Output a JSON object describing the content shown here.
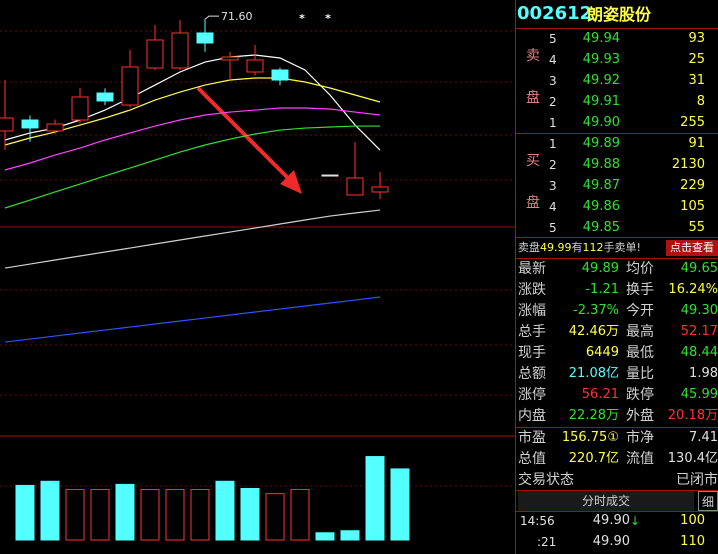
{
  "chart": {
    "type": "candlestick",
    "ylim": [
      20,
      74
    ],
    "up_color": "#ff3232",
    "down_color": "#54ffff",
    "flat_color": "#e0e0e0",
    "candles": [
      {
        "o": 57.55,
        "h": 63.95,
        "l": 55.16,
        "c": 59.18
      },
      {
        "o": 58.93,
        "h": 59.5,
        "l": 56.2,
        "c": 57.93
      },
      {
        "o": 57.55,
        "h": 59.0,
        "l": 57.2,
        "c": 58.43
      },
      {
        "o": 58.93,
        "h": 62.95,
        "l": 58.5,
        "c": 61.82
      },
      {
        "o": 62.32,
        "h": 62.9,
        "l": 60.8,
        "c": 61.32
      },
      {
        "o": 60.81,
        "h": 67.72,
        "l": 60.5,
        "c": 65.59
      },
      {
        "o": 65.46,
        "h": 70.86,
        "l": 65.2,
        "c": 68.98
      },
      {
        "o": 65.46,
        "h": 71.49,
        "l": 65.2,
        "c": 69.86
      },
      {
        "o": 69.86,
        "h": 71.6,
        "l": 67.5,
        "c": 68.6
      },
      {
        "o": 66.47,
        "h": 67.47,
        "l": 63.95,
        "c": 66.84
      },
      {
        "o": 64.96,
        "h": 68.35,
        "l": 64.5,
        "c": 66.47
      },
      {
        "o": 65.21,
        "h": 65.5,
        "l": 63.3,
        "c": 63.95
      },
      null,
      {
        "o": 52.02,
        "h": 52.02,
        "l": 52.02,
        "c": 52.02
      },
      {
        "o": 49.51,
        "h": 56.17,
        "l": 49.5,
        "c": 51.65
      },
      {
        "o": 49.89,
        "h": 52.4,
        "l": 49.01,
        "c": 50.52
      }
    ],
    "peak_label": "71.60",
    "markers": [
      "*",
      "*"
    ],
    "moving_averages": [
      {
        "color": "#ffffff",
        "values": [
          56.42,
          57.3,
          57.92,
          58.93,
          60.18,
          61.69,
          63.32,
          64.96,
          66.21,
          66.84,
          67.09,
          66.72,
          65.21,
          62.07,
          58.3,
          55.16
        ]
      },
      {
        "color": "#ffff40",
        "values": [
          55.79,
          56.67,
          57.42,
          58.3,
          59.18,
          60.18,
          61.44,
          62.44,
          63.32,
          63.95,
          64.2,
          64.2,
          63.7,
          62.95,
          62.07,
          61.19
        ]
      },
      {
        "color": "#ff40ff",
        "values": [
          52.65,
          53.53,
          54.53,
          55.41,
          56.42,
          57.3,
          58.17,
          58.93,
          59.56,
          59.93,
          60.18,
          60.44,
          60.44,
          60.31,
          59.93,
          59.56
        ]
      },
      {
        "color": "#30e030",
        "values": [
          47.88,
          48.88,
          49.89,
          50.89,
          51.9,
          52.9,
          53.9,
          54.91,
          55.79,
          56.54,
          57.17,
          57.67,
          57.92,
          58.05,
          58.17,
          58.17
        ]
      },
      {
        "color": "#d0d0d0",
        "values": [
          40.34,
          40.84,
          41.35,
          41.85,
          42.35,
          42.85,
          43.36,
          43.86,
          44.36,
          44.86,
          45.36,
          45.87,
          46.37,
          46.87,
          47.25,
          47.62
        ]
      },
      {
        "color": "#3050ff",
        "values": [
          31.04,
          31.42,
          31.8,
          32.18,
          32.55,
          32.93,
          33.31,
          33.69,
          34.06,
          34.44,
          34.82,
          35.19,
          35.57,
          35.95,
          36.32,
          36.7
        ]
      }
    ],
    "volume": {
      "ylim": [
        0,
        100
      ],
      "values": [
        53,
        57,
        49,
        49,
        54,
        49,
        49,
        49,
        57,
        50,
        45,
        49,
        7,
        9,
        81,
        69
      ],
      "up": [
        false,
        false,
        true,
        true,
        false,
        true,
        true,
        true,
        false,
        false,
        true,
        true,
        false,
        false,
        false,
        false
      ]
    }
  },
  "quote": {
    "code": "002612",
    "name": "朗姿股份",
    "sell_label": [
      "卖",
      "盘"
    ],
    "buy_label": [
      "买",
      "盘"
    ],
    "sell": [
      [
        "5",
        "49.94",
        "93"
      ],
      [
        "4",
        "49.93",
        "25"
      ],
      [
        "3",
        "49.92",
        "31"
      ],
      [
        "2",
        "49.91",
        "8"
      ],
      [
        "1",
        "49.90",
        "255"
      ]
    ],
    "buy": [
      [
        "1",
        "49.89",
        "91"
      ],
      [
        "2",
        "49.88",
        "2130"
      ],
      [
        "3",
        "49.87",
        "229"
      ],
      [
        "4",
        "49.86",
        "105"
      ],
      [
        "5",
        "49.85",
        "55"
      ]
    ],
    "notice": {
      "prefix": "卖盘",
      "price": "49.99",
      "mid": "有",
      "qty": "112",
      "suffix": "手卖单!"
    },
    "button": "点击查看",
    "stats": [
      [
        {
          "label": "最新",
          "value": "49.89",
          "color": "#30e030"
        },
        {
          "label": "均价",
          "value": "49.65",
          "color": "#30e030"
        }
      ],
      [
        {
          "label": "涨跌",
          "value": "-1.21",
          "color": "#30e030"
        },
        {
          "label": "换手",
          "value": "16.24%",
          "color": "#ffff40"
        }
      ],
      [
        {
          "label": "涨幅",
          "value": "-2.37%",
          "color": "#30e030"
        },
        {
          "label": "今开",
          "value": "49.30",
          "color": "#30e030"
        }
      ],
      [
        {
          "label": "总手",
          "value": "42.46万",
          "color": "#ffff40"
        },
        {
          "label": "最高",
          "value": "52.17",
          "color": "#ff3232"
        }
      ],
      [
        {
          "label": "现手",
          "value": "6449",
          "color": "#ffff40"
        },
        {
          "label": "最低",
          "value": "48.44",
          "color": "#30e030"
        }
      ],
      [
        {
          "label": "总额",
          "value": "21.08亿",
          "color": "#54ffff"
        },
        {
          "label": "量比",
          "value": "1.98",
          "color": "#e0e0e0"
        }
      ],
      [
        {
          "label": "涨停",
          "value": "56.21",
          "color": "#ff3232"
        },
        {
          "label": "跌停",
          "value": "45.99",
          "color": "#30e030"
        }
      ],
      [
        {
          "label": "内盘",
          "value": "22.28万",
          "color": "#30e030"
        },
        {
          "label": "外盘",
          "value": "20.18万",
          "color": "#ff3232"
        }
      ]
    ],
    "fundamentals": [
      [
        {
          "label": "市盈",
          "value": "156.75①",
          "color": "#ffff40"
        },
        {
          "label": "市净",
          "value": "7.41",
          "color": "#e0e0e0"
        }
      ],
      [
        {
          "label": "总值",
          "value": "220.7亿",
          "color": "#ffff40"
        },
        {
          "label": "流值",
          "value": "130.4亿",
          "color": "#e0e0e0"
        }
      ]
    ],
    "status": {
      "label": "交易状态",
      "value": "已闭市"
    },
    "trades_tab": "分时成交",
    "detail_tab": "细",
    "trades": [
      {
        "time": "14:56",
        "price": "49.90",
        "arrow": "↓",
        "qty": "100"
      },
      {
        "time": ":21",
        "price": "49.90",
        "qty": "110"
      }
    ]
  }
}
